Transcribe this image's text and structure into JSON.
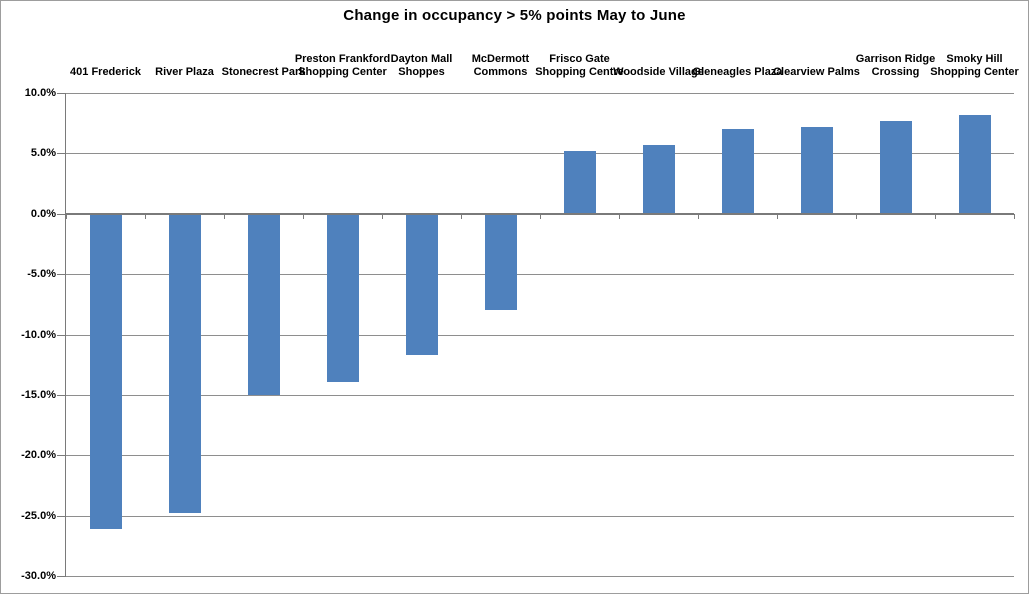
{
  "chart_data": {
    "type": "bar",
    "title": "Change in occupancy > 5% points May to June",
    "categories": [
      "401 Frederick",
      "River Plaza",
      "Stonecrest Park",
      "Preston Frankford Shopping Center",
      "Dayton Mall Shoppes",
      "McDermott Commons",
      "Frisco Gate Shopping Centre",
      "Woodside Village",
      "Gleneagles Plaza",
      "Clearview Palms",
      "Garrison Ridge Crossing",
      "Smoky Hill Shopping Center"
    ],
    "category_label_lines": [
      [
        "401 Frederick"
      ],
      [
        "River Plaza"
      ],
      [
        "Stonecrest Park"
      ],
      [
        "Preston Frankford",
        "Shopping Center"
      ],
      [
        "Dayton Mall",
        "Shoppes"
      ],
      [
        "McDermott",
        "Commons"
      ],
      [
        "Frisco Gate",
        "Shopping Centre"
      ],
      [
        "Woodside Village"
      ],
      [
        "Gleneagles Plaza"
      ],
      [
        "Clearview Palms"
      ],
      [
        "Garrison Ridge",
        "Crossing"
      ],
      [
        "Smoky Hill",
        "Shopping Center"
      ]
    ],
    "values": [
      -26.1,
      -24.8,
      -15.0,
      -13.9,
      -11.7,
      -8.0,
      5.2,
      5.7,
      7.0,
      7.2,
      7.7,
      8.2
    ],
    "value_unit": "% points",
    "xlabel": "",
    "ylabel": "",
    "ylim": [
      -30,
      10
    ],
    "ytick_step": 5,
    "ytick_labels": [
      "10.0%",
      "5.0%",
      "0.0%",
      "-5.0%",
      "-10.0%",
      "-15.0%",
      "-20.0%",
      "-25.0%",
      "-30.0%"
    ],
    "grid": true,
    "legend_position": "none",
    "bar_color": "#4f81bd",
    "gridline_color": "#8e8e8e",
    "axis_color": "#7a7a7a",
    "text_color": "#000000",
    "background_color": "#ffffff"
  }
}
